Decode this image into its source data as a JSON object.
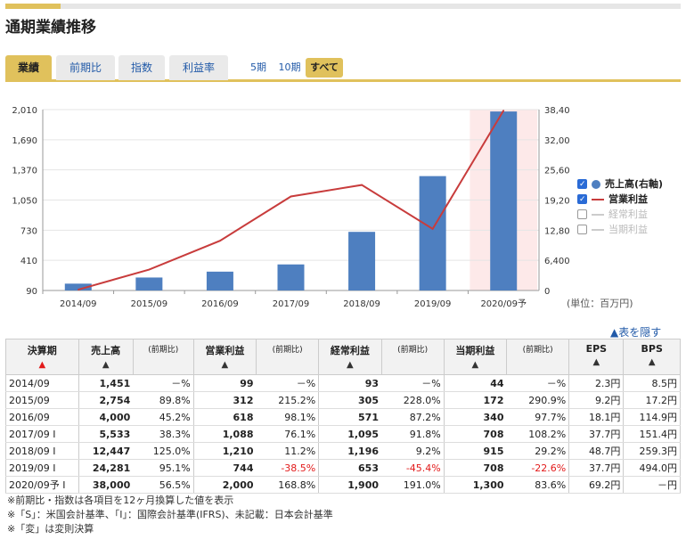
{
  "header": {
    "title": "通期業績推移"
  },
  "tabs": [
    {
      "label": "業績",
      "active": true
    },
    {
      "label": "前期比",
      "active": false
    },
    {
      "label": "指数",
      "active": false
    },
    {
      "label": "利益率",
      "active": false
    }
  ],
  "periods": [
    {
      "label": "5期",
      "active": false
    },
    {
      "label": "10期",
      "active": false
    },
    {
      "label": "すべて",
      "active": true
    }
  ],
  "chart_data": {
    "type": "bar",
    "categories": [
      "2014/09",
      "2015/09",
      "2016/09",
      "2017/09",
      "2018/09",
      "2019/09",
      "2020/09予"
    ],
    "forecast_index": 6,
    "series": [
      {
        "name": "売上高(右軸)",
        "kind": "bar",
        "axis": "right",
        "color": "#4e7fc0",
        "values": [
          1451,
          2754,
          4000,
          5533,
          12447,
          24281,
          38000
        ]
      },
      {
        "name": "営業利益",
        "kind": "line",
        "axis": "left",
        "color": "#c83c3c",
        "values": [
          99,
          312,
          618,
          1088,
          1210,
          744,
          2000
        ]
      }
    ],
    "left_axis": {
      "min": 90,
      "max": 2010,
      "ticks": [
        "2,010",
        "1,690",
        "1,370",
        "1,050",
        "730",
        "410",
        "90"
      ]
    },
    "right_axis": {
      "min": 0,
      "max": 38400,
      "ticks": [
        "38,400",
        "32,000",
        "25,600",
        "19,200",
        "12,800",
        "6,400",
        "0"
      ]
    },
    "unit_label": "(単位：百万円)"
  },
  "legend": [
    {
      "label": "売上高(右軸)",
      "checked": true,
      "symbol": "dot"
    },
    {
      "label": "営業利益",
      "checked": true,
      "symbol": "line"
    },
    {
      "label": "経常利益",
      "checked": false,
      "symbol": "line"
    },
    {
      "label": "当期利益",
      "checked": false,
      "symbol": "line"
    }
  ],
  "hide_link": "▲表を隠す",
  "table": {
    "headers": [
      {
        "label": "決算期",
        "arrow": "▲",
        "arrow_red": true
      },
      {
        "label": "売上高",
        "arrow": "▲"
      },
      {
        "label": "(前期比)",
        "sub": true
      },
      {
        "label": "営業利益",
        "arrow": "▲"
      },
      {
        "label": "(前期比)",
        "sub": true
      },
      {
        "label": "経常利益",
        "arrow": "▲"
      },
      {
        "label": "(前期比)",
        "sub": true
      },
      {
        "label": "当期利益",
        "arrow": "▲"
      },
      {
        "label": "(前期比)",
        "sub": true
      },
      {
        "label": "EPS",
        "arrow": "▲"
      },
      {
        "label": "BPS",
        "arrow": "▲"
      }
    ],
    "rows": [
      [
        "2014/09",
        "1,451",
        "－%",
        "99",
        "－%",
        "93",
        "－%",
        "44",
        "－%",
        "2.3円",
        "8.5円"
      ],
      [
        "2015/09",
        "2,754",
        "89.8%",
        "312",
        "215.2%",
        "305",
        "228.0%",
        "172",
        "290.9%",
        "9.2円",
        "17.2円"
      ],
      [
        "2016/09",
        "4,000",
        "45.2%",
        "618",
        "98.1%",
        "571",
        "87.2%",
        "340",
        "97.7%",
        "18.1円",
        "114.9円"
      ],
      [
        "2017/09 I",
        "5,533",
        "38.3%",
        "1,088",
        "76.1%",
        "1,095",
        "91.8%",
        "708",
        "108.2%",
        "37.7円",
        "151.4円"
      ],
      [
        "2018/09 I",
        "12,447",
        "125.0%",
        "1,210",
        "11.2%",
        "1,196",
        "9.2%",
        "915",
        "29.2%",
        "48.7円",
        "259.3円"
      ],
      [
        "2019/09 I",
        "24,281",
        "95.1%",
        "744",
        "-38.5%",
        "653",
        "-45.4%",
        "708",
        "-22.6%",
        "37.7円",
        "494.0円"
      ],
      [
        "2020/09予 I",
        "38,000",
        "56.5%",
        "2,000",
        "168.8%",
        "1,900",
        "191.0%",
        "1,300",
        "83.6%",
        "69.2円",
        "－円"
      ]
    ]
  },
  "notes": [
    "※前期比・指数は各項目を12ヶ月換算した値を表示",
    "※「S」：米国会計基準、「I」：国際会計基準(IFRS)、未記載：日本会計基準",
    "※「変」は変則決算"
  ]
}
